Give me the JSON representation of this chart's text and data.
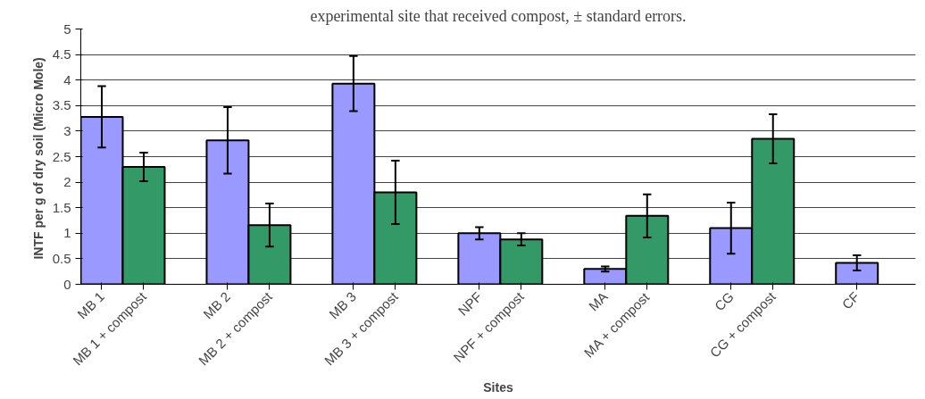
{
  "chart_data": {
    "type": "bar",
    "title": "experimental site that received compost, ± standard errors.",
    "xlabel": "Sites",
    "ylabel": "INTF  per g of dry soil (Micro Mole)",
    "categories": [
      "MB 1",
      "MB 1 + compost",
      "MB 2",
      "MB 2 + compost",
      "MB 3",
      "MB 3 + compost",
      "NPF",
      "NPF + compost",
      "MA",
      "MA + compost",
      "CG",
      "CG + compost",
      "CF"
    ],
    "values": [
      3.28,
      2.3,
      2.82,
      1.16,
      3.93,
      1.8,
      1.0,
      0.88,
      0.3,
      1.34,
      1.1,
      2.85,
      0.42
    ],
    "errors": [
      0.6,
      0.28,
      0.65,
      0.42,
      0.54,
      0.62,
      0.12,
      0.12,
      0.05,
      0.42,
      0.5,
      0.48,
      0.15
    ],
    "colors": [
      "#9999ff",
      "#339966",
      "#9999ff",
      "#339966",
      "#9999ff",
      "#339966",
      "#9999ff",
      "#339966",
      "#9999ff",
      "#339966",
      "#9999ff",
      "#339966",
      "#9999ff"
    ],
    "ylim": [
      0,
      5
    ],
    "yticks": [
      0,
      0.5,
      1,
      1.5,
      2,
      2.5,
      3,
      3.5,
      4,
      4.5,
      5
    ],
    "grid": "y"
  }
}
